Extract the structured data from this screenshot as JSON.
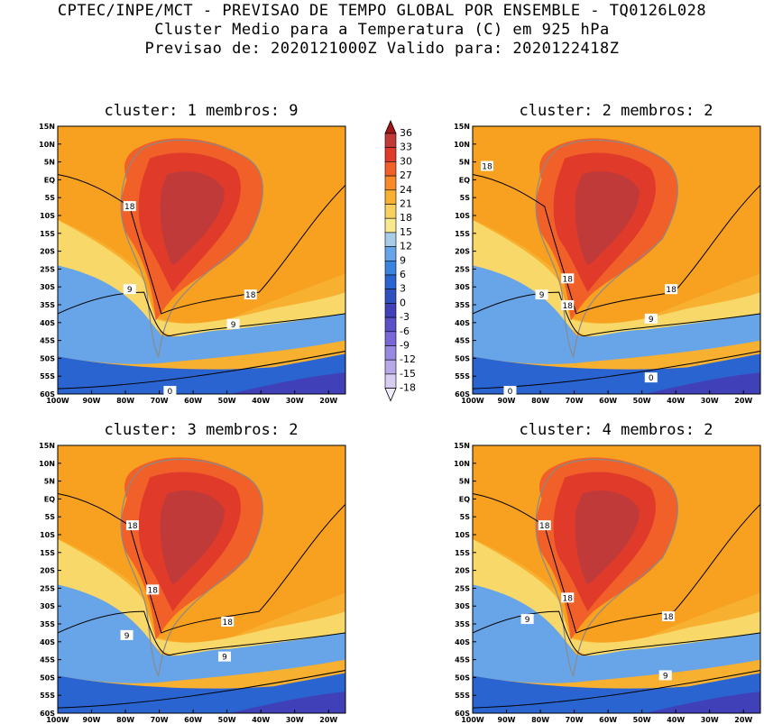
{
  "header": {
    "line1": "CPTEC/INPE/MCT - PREVISAO DE TEMPO GLOBAL POR ENSEMBLE - TQ0126L028",
    "line2": "Cluster Medio para a Temperatura (C) em 925 hPa",
    "line3": "Previsao de: 2020121000Z   Valido para: 2020122418Z"
  },
  "axes": {
    "lat_ticks": [
      "15N",
      "10N",
      "5N",
      "EQ",
      "5S",
      "10S",
      "15S",
      "20S",
      "25S",
      "30S",
      "35S",
      "40S",
      "45S",
      "50S",
      "55S",
      "60S"
    ],
    "lon_ticks": [
      "100W",
      "90W",
      "80W",
      "70W",
      "60W",
      "50W",
      "40W",
      "30W",
      "20W"
    ]
  },
  "colorbar": {
    "labels": [
      "36",
      "33",
      "30",
      "27",
      "24",
      "21",
      "18",
      "15",
      "12",
      "9",
      "6",
      "3",
      "0",
      "-3",
      "-6",
      "-9",
      "-12",
      "-15",
      "-18"
    ],
    "colors": [
      "#a01818",
      "#c03a3a",
      "#e03a2a",
      "#f06028",
      "#f88a28",
      "#f8b030",
      "#f8d060",
      "#f8e890",
      "#a8cce8",
      "#68a4e8",
      "#3a84e0",
      "#2a64d0",
      "#3050c0",
      "#4040b8",
      "#5a50c8",
      "#7868d8",
      "#9888e0",
      "#b8a8e8",
      "#d8ccf0"
    ]
  },
  "panels": [
    {
      "title": "cluster: 1   membros: 9",
      "contours": [
        "18",
        "18",
        "9",
        "9",
        "0"
      ]
    },
    {
      "title": "cluster: 2   membros: 2",
      "contours": [
        "18",
        "18",
        "18",
        "18",
        "9",
        "9",
        "0",
        "0"
      ]
    },
    {
      "title": "cluster: 3   membros: 2",
      "contours": [
        "18",
        "18",
        "18",
        "9",
        "9"
      ]
    },
    {
      "title": "cluster: 4   membros: 2",
      "contours": [
        "18",
        "18",
        "18",
        "9",
        "9"
      ]
    }
  ]
}
